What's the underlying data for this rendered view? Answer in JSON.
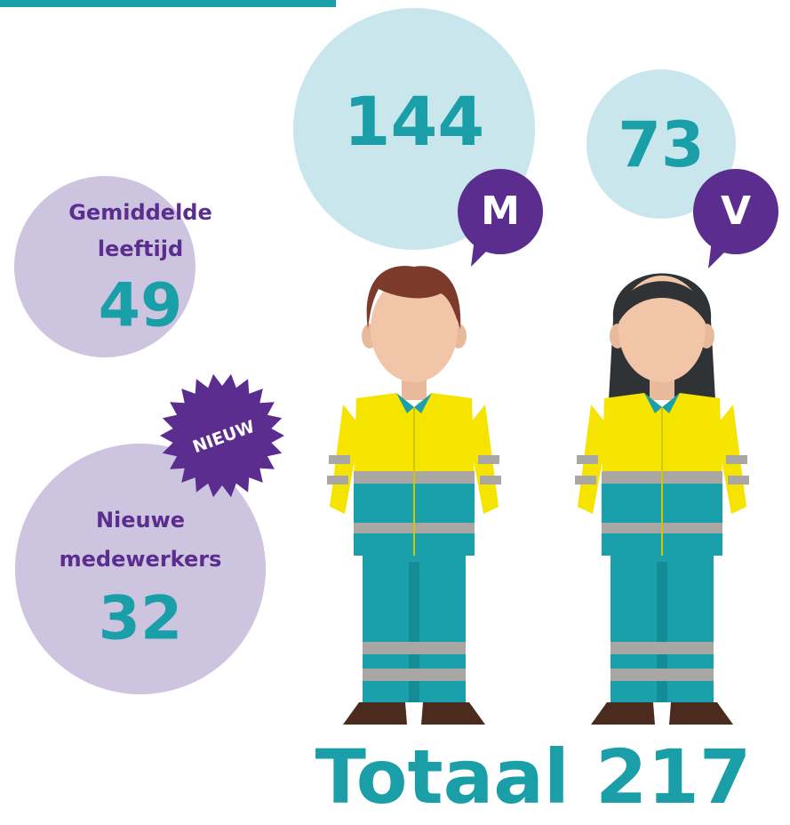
{
  "men": {
    "count": 144,
    "label": "M"
  },
  "women": {
    "count": 73,
    "label": "V"
  },
  "average_age": {
    "label_lines": [
      "Gemiddelde",
      "leeftijd"
    ],
    "value": 49
  },
  "new_employees": {
    "badge": "NIEUW",
    "label_lines": [
      "Nieuwe",
      "medewerkers"
    ],
    "value": 32
  },
  "total": "Totaal 217"
}
